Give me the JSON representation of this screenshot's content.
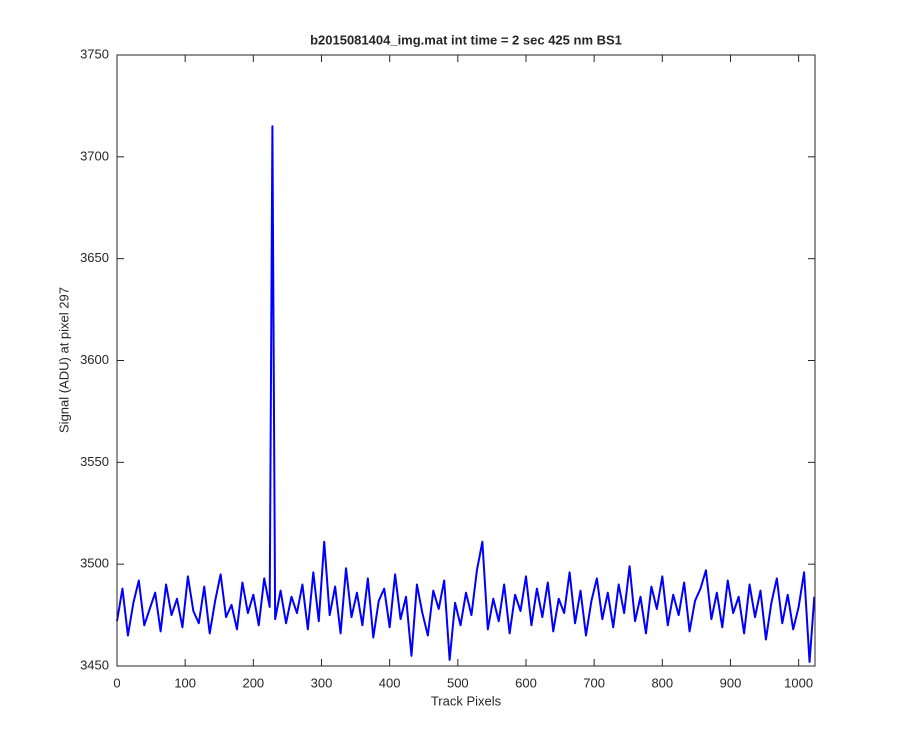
{
  "chart_data": {
    "type": "line",
    "title": "b2015081404_img.mat int time = 2 sec  425 nm BS1",
    "xlabel": "Track Pixels",
    "ylabel": "Signal (ADU) at pixel 297",
    "x": [
      0,
      8,
      16,
      24,
      32,
      40,
      48,
      56,
      64,
      72,
      80,
      88,
      96,
      104,
      112,
      120,
      128,
      136,
      144,
      152,
      160,
      168,
      176,
      184,
      192,
      200,
      208,
      216,
      224,
      228,
      232,
      240,
      248,
      256,
      264,
      272,
      280,
      288,
      296,
      304,
      312,
      320,
      328,
      336,
      344,
      352,
      360,
      368,
      376,
      384,
      392,
      400,
      408,
      416,
      424,
      432,
      440,
      448,
      456,
      464,
      472,
      480,
      488,
      496,
      504,
      512,
      520,
      528,
      536,
      544,
      552,
      560,
      568,
      576,
      584,
      592,
      600,
      608,
      616,
      624,
      632,
      640,
      648,
      656,
      664,
      672,
      680,
      688,
      696,
      704,
      712,
      720,
      728,
      736,
      744,
      752,
      760,
      768,
      776,
      784,
      792,
      800,
      808,
      816,
      824,
      832,
      840,
      848,
      856,
      864,
      872,
      880,
      888,
      896,
      904,
      912,
      920,
      928,
      936,
      944,
      952,
      960,
      968,
      976,
      984,
      992,
      1000,
      1008,
      1016,
      1023
    ],
    "series": [
      {
        "color": "#0000ff",
        "values": [
          3472,
          3488,
          3465,
          3481,
          3492,
          3470,
          3478,
          3486,
          3467,
          3490,
          3475,
          3483,
          3469,
          3494,
          3477,
          3471,
          3489,
          3466,
          3482,
          3495,
          3474,
          3480,
          3468,
          3491,
          3476,
          3485,
          3470,
          3493,
          3479,
          3715,
          3473,
          3487,
          3471,
          3484,
          3476,
          3490,
          3468,
          3496,
          3472,
          3511,
          3475,
          3489,
          3466,
          3498,
          3474,
          3486,
          3470,
          3493,
          3464,
          3482,
          3488,
          3469,
          3495,
          3473,
          3484,
          3455,
          3490,
          3476,
          3465,
          3487,
          3478,
          3492,
          3453,
          3481,
          3470,
          3486,
          3475,
          3497,
          3511,
          3468,
          3483,
          3472,
          3490,
          3466,
          3485,
          3477,
          3494,
          3470,
          3488,
          3474,
          3491,
          3467,
          3483,
          3476,
          3496,
          3471,
          3487,
          3465,
          3482,
          3493,
          3473,
          3486,
          3469,
          3490,
          3476,
          3499,
          3472,
          3484,
          3466,
          3489,
          3478,
          3494,
          3470,
          3485,
          3475,
          3491,
          3467,
          3482,
          3488,
          3497,
          3473,
          3486,
          3469,
          3492,
          3476,
          3484,
          3466,
          3490,
          3474,
          3487,
          3463,
          3481,
          3493,
          3471,
          3485,
          3468,
          3479,
          3496,
          3452,
          3484
        ]
      }
    ],
    "xlim": [
      0,
      1024
    ],
    "ylim": [
      3450,
      3750
    ],
    "xticks": [
      0,
      100,
      200,
      300,
      400,
      500,
      600,
      700,
      800,
      900,
      1000
    ],
    "yticks": [
      3450,
      3500,
      3550,
      3600,
      3650,
      3700,
      3750
    ]
  }
}
